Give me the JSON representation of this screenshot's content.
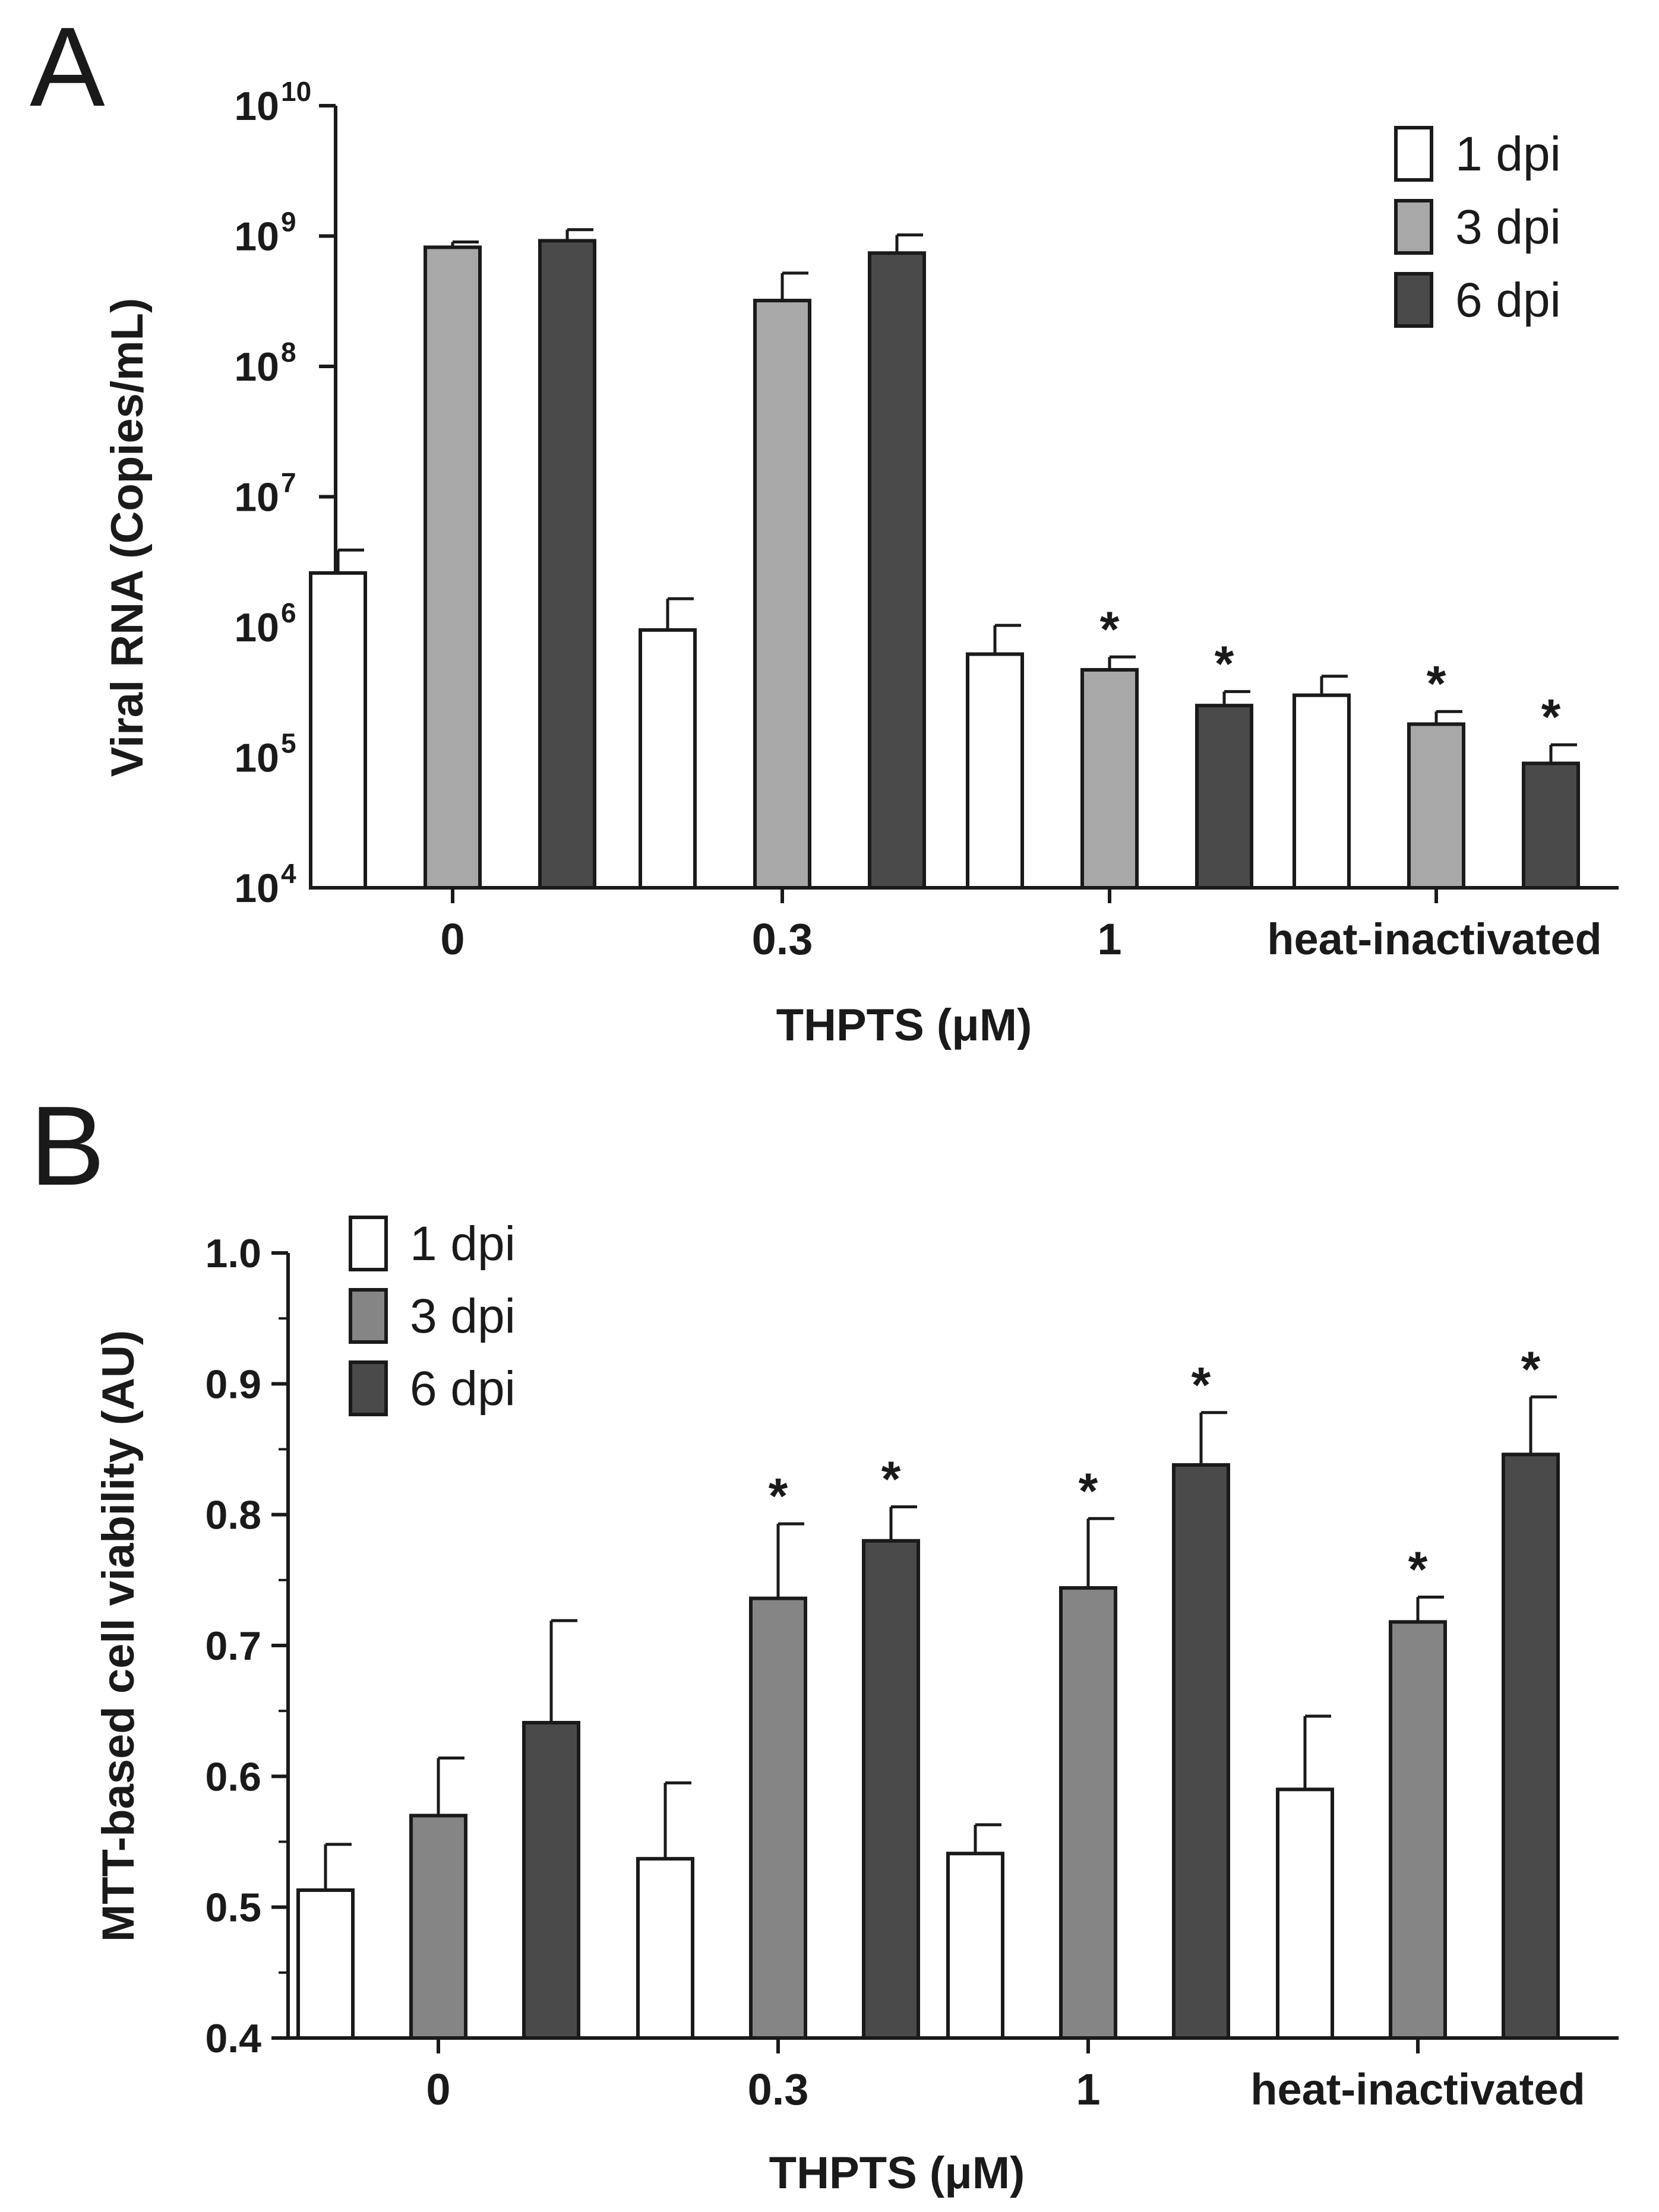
{
  "chart_data": [
    {
      "panel": "A",
      "type": "bar",
      "scale": "log",
      "xlabel": "THPTS (μM)",
      "ylabel": "Viral RNA (Copies/mL)",
      "ylim": [
        10000,
        10000000000
      ],
      "y_ticks": [
        {
          "base": "10",
          "exp": "4"
        },
        {
          "base": "10",
          "exp": "5"
        },
        {
          "base": "10",
          "exp": "6"
        },
        {
          "base": "10",
          "exp": "7"
        },
        {
          "base": "10",
          "exp": "8"
        },
        {
          "base": "10",
          "exp": "9"
        },
        {
          "base": "10",
          "exp": "10"
        }
      ],
      "categories": [
        "0",
        "0.3",
        "1",
        "heat-inactivated"
      ],
      "legend_position": "top-right",
      "series": [
        {
          "name": "1 dpi",
          "color": "#ffffff",
          "values": [
            2600000,
            950000,
            620000,
            300000
          ],
          "errors": [
            3900000,
            1650000,
            1030000,
            420000
          ],
          "significant": [
            false,
            false,
            false,
            false
          ]
        },
        {
          "name": "3 dpi",
          "color": "#a8a8a8",
          "values": [
            820000000,
            320000000,
            470000,
            180000
          ],
          "errors": [
            900000000,
            520000000,
            590000,
            225000
          ],
          "significant": [
            false,
            false,
            true,
            true
          ]
        },
        {
          "name": "6 dpi",
          "color": "#4a4a4a",
          "values": [
            920000000,
            740000000,
            250000,
            90000
          ],
          "errors": [
            1120000000,
            1020000000,
            320000,
            125000
          ],
          "significant": [
            false,
            false,
            true,
            true
          ]
        }
      ],
      "significance_marker": "*"
    },
    {
      "panel": "B",
      "type": "bar",
      "scale": "linear",
      "xlabel": "THPTS (μM)",
      "ylabel": "MTT-based cell viability (AU)",
      "ylim": [
        0.4,
        1.0
      ],
      "y_ticks": [
        "0.4",
        "0.5",
        "0.6",
        "0.7",
        "0.8",
        "0.9",
        "1.0"
      ],
      "categories": [
        "0",
        "0.3",
        "1",
        "heat-inactivated"
      ],
      "legend_position": "top-left",
      "series": [
        {
          "name": "1 dpi",
          "color": "#ffffff",
          "values": [
            0.513,
            0.537,
            0.541,
            0.59
          ],
          "errors": [
            0.548,
            0.595,
            0.563,
            0.646
          ],
          "significant": [
            false,
            false,
            false,
            false
          ]
        },
        {
          "name": "3 dpi",
          "color": "#858585",
          "values": [
            0.57,
            0.736,
            0.744,
            0.718
          ],
          "errors": [
            0.614,
            0.793,
            0.797,
            0.737
          ],
          "significant": [
            false,
            true,
            true,
            true
          ]
        },
        {
          "name": "6 dpi",
          "color": "#4a4a4a",
          "values": [
            0.641,
            0.78,
            0.838,
            0.846
          ],
          "errors": [
            0.719,
            0.806,
            0.878,
            0.89
          ],
          "significant": [
            false,
            true,
            true,
            true
          ]
        }
      ],
      "significance_marker": "*"
    }
  ]
}
